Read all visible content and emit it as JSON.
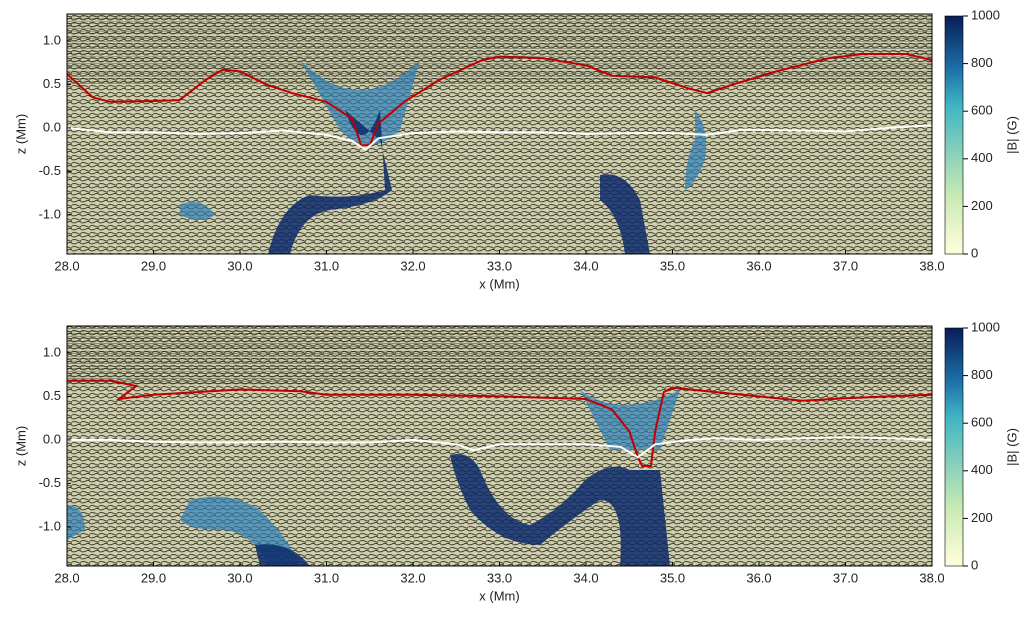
{
  "chart_data": [
    {
      "type": "line",
      "xlabel": "x (Mm)",
      "ylabel": "z (Mm)",
      "xlim": [
        28,
        38
      ],
      "ylim": [
        -1.45,
        1.31
      ],
      "xticks": [
        {
          "value": 28,
          "label": "28.0"
        },
        {
          "value": 29,
          "label": "29.0"
        },
        {
          "value": 30,
          "label": "30.0"
        },
        {
          "value": 31,
          "label": "31.0"
        },
        {
          "value": 32,
          "label": "32.0"
        },
        {
          "value": 33,
          "label": "33.0"
        },
        {
          "value": 34,
          "label": "34.0"
        },
        {
          "value": 35,
          "label": "35.0"
        },
        {
          "value": 36,
          "label": "36.0"
        },
        {
          "value": 37,
          "label": "37.0"
        },
        {
          "value": 38,
          "label": "38.0"
        }
      ],
      "yticks": [
        {
          "value": 1,
          "label": "1.0"
        },
        0.5,
        {
          "value": 0,
          "label": "0.0"
        },
        -0.5,
        {
          "value": -1,
          "label": "-1.0"
        }
      ],
      "colorbar": {
        "label": "|B| (G)",
        "lim": [
          0,
          1000
        ],
        "ticks": [
          0,
          200,
          400,
          600,
          800,
          1000
        ]
      },
      "series": [
        {
          "color": "#c00000",
          "x": [
            28.0,
            28.3,
            28.5,
            29.0,
            29.3,
            29.6,
            29.8,
            30.0,
            30.3,
            30.6,
            31.0,
            31.3,
            31.4,
            31.5,
            31.6,
            31.9,
            32.3,
            32.8,
            33.0,
            33.5,
            34.0,
            34.3,
            34.8,
            35.2,
            35.4,
            35.7,
            36.2,
            36.8,
            37.2,
            37.7,
            38.0
          ],
          "values": [
            0.62,
            0.35,
            0.3,
            0.31,
            0.32,
            0.55,
            0.67,
            0.65,
            0.5,
            0.4,
            0.3,
            0.1,
            -0.2,
            -0.2,
            0.05,
            0.3,
            0.55,
            0.78,
            0.82,
            0.8,
            0.72,
            0.6,
            0.58,
            0.45,
            0.4,
            0.5,
            0.65,
            0.8,
            0.85,
            0.85,
            0.78
          ]
        },
        {
          "color": "#ffffff",
          "x": [
            28.0,
            28.5,
            29.0,
            29.5,
            30.0,
            30.5,
            31.0,
            31.3,
            31.45,
            31.6,
            32.0,
            32.5,
            33.0,
            33.5,
            34.0,
            34.5,
            35.0,
            35.4,
            35.8,
            36.5,
            37.0,
            37.5,
            38.0
          ],
          "values": [
            0.0,
            -0.05,
            -0.05,
            -0.07,
            -0.06,
            -0.03,
            -0.08,
            -0.15,
            -0.25,
            -0.12,
            -0.06,
            -0.04,
            -0.05,
            -0.05,
            -0.07,
            -0.06,
            -0.06,
            -0.08,
            -0.02,
            -0.03,
            -0.04,
            0.0,
            0.03
          ]
        }
      ]
    },
    {
      "type": "line",
      "xlabel": "x (Mm)",
      "ylabel": "z (Mm)",
      "xlim": [
        28,
        38
      ],
      "ylim": [
        -1.45,
        1.31
      ],
      "xticks": [
        {
          "value": 28,
          "label": "28.0"
        },
        {
          "value": 29,
          "label": "29.0"
        },
        {
          "value": 30,
          "label": "30.0"
        },
        {
          "value": 31,
          "label": "31.0"
        },
        {
          "value": 32,
          "label": "32.0"
        },
        {
          "value": 33,
          "label": "33.0"
        },
        {
          "value": 34,
          "label": "34.0"
        },
        {
          "value": 35,
          "label": "35.0"
        },
        {
          "value": 36,
          "label": "36.0"
        },
        {
          "value": 37,
          "label": "37.0"
        },
        {
          "value": 38,
          "label": "38.0"
        }
      ],
      "yticks": [
        {
          "value": 1,
          "label": "1.0"
        },
        0.5,
        {
          "value": 0,
          "label": "0.0"
        },
        -0.5,
        {
          "value": -1,
          "label": "-1.0"
        }
      ],
      "colorbar": {
        "label": "|B| (G)",
        "lim": [
          0,
          1000
        ],
        "ticks": [
          0,
          200,
          400,
          600,
          800,
          1000
        ]
      },
      "series": [
        {
          "color": "#c00000",
          "x": [
            28.0,
            28.5,
            28.8,
            28.6,
            29.0,
            29.5,
            30.0,
            30.7,
            31.0,
            32.0,
            33.0,
            34.0,
            34.3,
            34.5,
            34.6,
            34.65,
            34.75,
            34.8,
            34.9,
            35.0,
            35.5,
            36.0,
            36.5,
            37.0,
            37.5,
            38.0
          ],
          "values": [
            0.68,
            0.68,
            0.62,
            0.47,
            0.52,
            0.55,
            0.58,
            0.56,
            0.52,
            0.52,
            0.5,
            0.47,
            0.35,
            0.1,
            -0.2,
            -0.3,
            -0.3,
            0.1,
            0.55,
            0.6,
            0.55,
            0.5,
            0.45,
            0.48,
            0.5,
            0.52
          ]
        },
        {
          "color": "#ffffff",
          "x": [
            28.0,
            28.5,
            29.0,
            29.5,
            30.0,
            30.5,
            31.0,
            31.5,
            32.0,
            32.5,
            32.7,
            33.0,
            33.5,
            34.0,
            34.4,
            34.6,
            34.8,
            35.2,
            35.5,
            36.0,
            36.5,
            37.0,
            37.5,
            38.0
          ],
          "values": [
            0.0,
            0.0,
            -0.02,
            -0.03,
            -0.03,
            -0.02,
            -0.03,
            -0.03,
            0.0,
            -0.05,
            -0.12,
            -0.05,
            -0.05,
            -0.05,
            -0.08,
            -0.2,
            -0.05,
            0.0,
            0.02,
            0.0,
            0.02,
            0.03,
            0.02,
            0.0
          ]
        }
      ]
    }
  ]
}
